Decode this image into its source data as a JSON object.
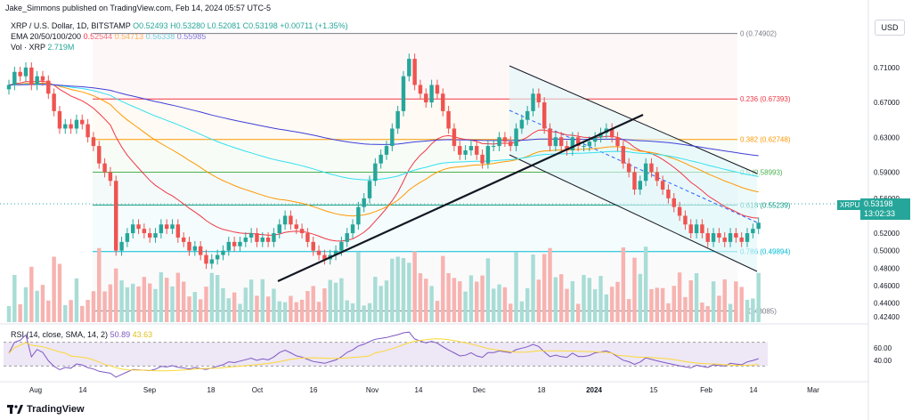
{
  "header": {
    "text": "Jake_Simmons published on TradingView.com, Feb 14, 2024 05:57 UTC-5"
  },
  "legend": {
    "symbol": "XRP / U.S. Dollar, 1D, BITSTAMP",
    "ohlc": "O0.52493 H0.53280 L0.52081 C0.53198 +0.00711 (+1.35%)",
    "ema_label": "EMA 20/50/100/200",
    "ema_values": [
      "0.52544",
      "0.54713",
      "0.56338",
      "0.55985"
    ],
    "vol_label": "Vol · XRP",
    "vol_value": "2.719M",
    "rsi_label": "RSI (14, close, SMA, 14, 2)",
    "rsi_value": "50.89",
    "rsi_sma": "43.63"
  },
  "currency": "USD",
  "price_tag": {
    "symbol": "XRPUSD",
    "price": "0.53198",
    "countdown": "13:02:33"
  },
  "footer": {
    "brand": "TradingView"
  },
  "colors": {
    "up": "#26a69a",
    "down": "#ef5350",
    "ema20": "#f23645",
    "ema50": "#ff9800",
    "ema100": "#33e0f0",
    "ema200": "#3f3fd8",
    "fib_0": "#787b86",
    "fib_236": "#f23645",
    "fib_382": "#ff9800",
    "fib_5": "#4caf50",
    "fib_618": "#089981",
    "fib_786": "#00bcd4",
    "fib_1": "#787b86",
    "rsi_line": "#7e57c2",
    "rsi_sma": "#fdd835",
    "rsi_band": "#ede7f6"
  },
  "chart_data": {
    "type": "candlestick",
    "x_axis_labels": [
      "Aug",
      "14",
      "Sep",
      "18",
      "Oct",
      "16",
      "Nov",
      "14",
      "Dec",
      "18",
      "2024",
      "15",
      "Feb",
      "14",
      "Mar"
    ],
    "y_axis_labels": [
      "0.71000",
      "0.67000",
      "0.63000",
      "0.59000",
      "0.56000",
      "0.54000",
      "0.52000",
      "0.50000",
      "0.48000",
      "0.46000",
      "0.44000",
      "0.42400"
    ],
    "ylim": [
      0.418,
      0.765
    ],
    "fib_levels": [
      {
        "label": "0 (0.74902)",
        "value": 0.74902
      },
      {
        "label": "0.236 (0.67393)",
        "value": 0.67393
      },
      {
        "label": "0.382 (0.62748)",
        "value": 0.62748
      },
      {
        "label": "0.5 (0.58993)",
        "value": 0.58993
      },
      {
        "label": "0.618 (0.55239)",
        "value": 0.55239
      },
      {
        "label": "0.786 (0.49894)",
        "value": 0.49894
      },
      {
        "label": "1 (0.43085)",
        "value": 0.43085
      }
    ],
    "closes": [
      0.69,
      0.705,
      0.7,
      0.71,
      0.69,
      0.7,
      0.695,
      0.68,
      0.66,
      0.64,
      0.645,
      0.64,
      0.65,
      0.645,
      0.63,
      0.62,
      0.6,
      0.59,
      0.58,
      0.5,
      0.51,
      0.52,
      0.53,
      0.525,
      0.52,
      0.515,
      0.52,
      0.53,
      0.525,
      0.53,
      0.515,
      0.51,
      0.5,
      0.505,
      0.495,
      0.485,
      0.49,
      0.495,
      0.5,
      0.51,
      0.505,
      0.51,
      0.515,
      0.52,
      0.51,
      0.515,
      0.51,
      0.52,
      0.53,
      0.54,
      0.53,
      0.525,
      0.52,
      0.51,
      0.5,
      0.495,
      0.49,
      0.495,
      0.5,
      0.51,
      0.52,
      0.53,
      0.55,
      0.56,
      0.58,
      0.6,
      0.61,
      0.62,
      0.64,
      0.66,
      0.7,
      0.72,
      0.69,
      0.68,
      0.67,
      0.69,
      0.68,
      0.66,
      0.64,
      0.62,
      0.61,
      0.615,
      0.62,
      0.61,
      0.6,
      0.62,
      0.62,
      0.63,
      0.625,
      0.62,
      0.64,
      0.65,
      0.66,
      0.68,
      0.67,
      0.64,
      0.62,
      0.63,
      0.62,
      0.615,
      0.63,
      0.62,
      0.62,
      0.625,
      0.63,
      0.635,
      0.64,
      0.63,
      0.62,
      0.6,
      0.59,
      0.57,
      0.58,
      0.6,
      0.59,
      0.58,
      0.57,
      0.56,
      0.55,
      0.54,
      0.53,
      0.52,
      0.53,
      0.52,
      0.51,
      0.52,
      0.515,
      0.51,
      0.52,
      0.515,
      0.51,
      0.52,
      0.525,
      0.532
    ],
    "annotations": [
      "descending channel",
      "ascending trendline"
    ]
  }
}
